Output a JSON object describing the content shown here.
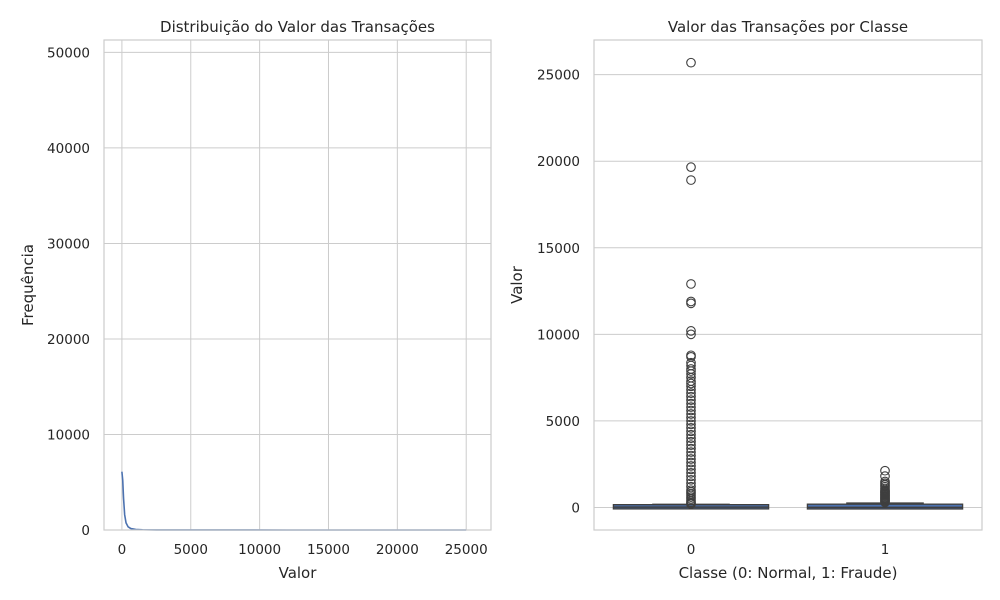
{
  "colors": {
    "background": "#ffffff",
    "grid": "#cccccc",
    "text": "#262626",
    "hist_line": "#4c72b0",
    "box_edge": "#3f3f3f",
    "box_fill": "#4c72b0"
  },
  "chart_data": [
    {
      "type": "histogram",
      "title": "Distribuição do Valor das Transações",
      "xlabel": "Valor",
      "ylabel": "Frequência",
      "xlim": [
        -1300,
        26800
      ],
      "ylim": [
        0,
        51300
      ],
      "xticks": [
        0,
        5000,
        10000,
        15000,
        20000,
        25000
      ],
      "xtick_labels": [
        "0",
        "5000",
        "10000",
        "15000",
        "20000",
        "25000"
      ],
      "yticks": [
        0,
        10000,
        20000,
        30000,
        40000,
        50000
      ],
      "ytick_labels": [
        "0",
        "10000",
        "20000",
        "30000",
        "40000",
        "50000"
      ],
      "grid": true,
      "kde_curve": {
        "x": [
          0,
          60,
          120,
          200,
          300,
          450,
          650,
          1000,
          1500,
          2500,
          4000,
          7000,
          12000,
          18000,
          25000
        ],
        "y": [
          6100,
          5200,
          3300,
          1600,
          750,
          330,
          150,
          60,
          25,
          10,
          5,
          2,
          1,
          0,
          0
        ]
      }
    },
    {
      "type": "boxplot",
      "title": "Valor das Transações por Classe",
      "xlabel": "Classe (0: Normal, 1: Fraude)",
      "ylabel": "Valor",
      "ylim": [
        -1300,
        27000
      ],
      "yticks": [
        0,
        5000,
        10000,
        15000,
        20000,
        25000
      ],
      "ytick_labels": [
        "0",
        "5000",
        "10000",
        "15000",
        "20000",
        "25000"
      ],
      "categories": [
        "0",
        "1"
      ],
      "grid": true,
      "boxes": [
        {
          "category": "0",
          "q1": 5,
          "median": 22,
          "q3": 77,
          "whisker_low": 0,
          "whisker_high": 185,
          "outliers": [
            25691,
            19656,
            18910,
            12910,
            11898,
            11790,
            10199,
            10000,
            8790,
            8700,
            8360,
            8200,
            8000,
            7879,
            7712,
            7500,
            7300,
            7160,
            7000,
            6800,
            6600,
            6400,
            6200,
            6000,
            5800,
            5600,
            5400,
            5200,
            5000,
            4800,
            4600,
            4400,
            4200,
            4000,
            3800,
            3600,
            3400,
            3200,
            3000,
            2800,
            2600,
            2400,
            2200,
            2000,
            1800,
            1600,
            1400,
            1200,
            1000,
            900,
            800,
            700,
            600,
            500,
            400,
            300,
            250,
            200
          ]
        },
        {
          "category": "1",
          "q1": 1,
          "median": 9,
          "q3": 105,
          "whisker_low": 0,
          "whisker_high": 260,
          "outliers": [
            2125,
            1810,
            1500,
            1400,
            1300,
            1200,
            1100,
            1000,
            950,
            900,
            850,
            800,
            750,
            700,
            650,
            600,
            550,
            500,
            450,
            400,
            350,
            300
          ]
        }
      ]
    }
  ]
}
